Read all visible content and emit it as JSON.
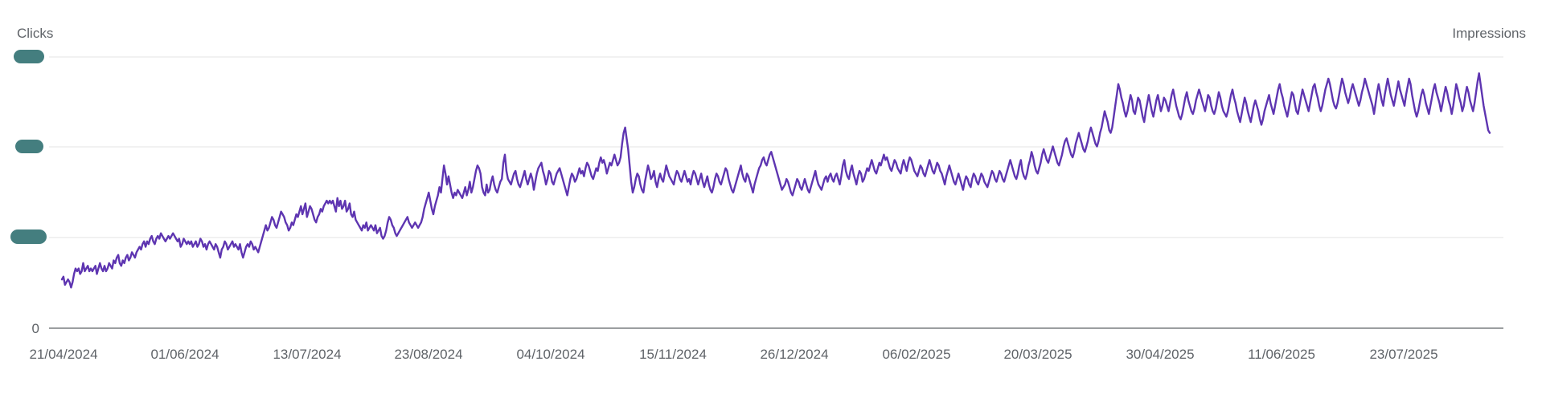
{
  "chart_data": {
    "type": "line",
    "ylabel_left": "Clicks",
    "ylabel_right": "Impressions",
    "y_ticks": [
      {
        "value": 0,
        "label": "0"
      }
    ],
    "y_ticks_redacted_count": 3,
    "x_ticks": [
      "21/04/2024",
      "01/06/2024",
      "13/07/2024",
      "23/08/2024",
      "04/10/2024",
      "15/11/2024",
      "26/12/2024",
      "06/02/2025",
      "20/03/2025",
      "30/04/2025",
      "11/06/2025",
      "23/07/2025"
    ],
    "x_range": [
      "2024-04-21",
      "2025-08-28"
    ],
    "y_range_fraction_of_top_gridline": [
      0,
      1
    ],
    "grid": true,
    "series": [
      {
        "axis": "left",
        "color": "#5e35b1",
        "point_interval_days": 1,
        "values_relative_to_top_gridline": [
          0.18,
          0.19,
          0.16,
          0.17,
          0.18,
          0.17,
          0.15,
          0.17,
          0.2,
          0.22,
          0.21,
          0.22,
          0.2,
          0.21,
          0.24,
          0.21,
          0.22,
          0.23,
          0.21,
          0.22,
          0.21,
          0.22,
          0.23,
          0.2,
          0.22,
          0.24,
          0.22,
          0.21,
          0.23,
          0.21,
          0.22,
          0.24,
          0.23,
          0.22,
          0.25,
          0.24,
          0.26,
          0.27,
          0.24,
          0.23,
          0.25,
          0.24,
          0.26,
          0.27,
          0.25,
          0.26,
          0.28,
          0.27,
          0.26,
          0.28,
          0.29,
          0.3,
          0.29,
          0.31,
          0.32,
          0.3,
          0.32,
          0.31,
          0.33,
          0.34,
          0.32,
          0.31,
          0.33,
          0.34,
          0.33,
          0.35,
          0.34,
          0.33,
          0.32,
          0.33,
          0.34,
          0.33,
          0.34,
          0.35,
          0.34,
          0.33,
          0.32,
          0.33,
          0.3,
          0.31,
          0.33,
          0.32,
          0.31,
          0.32,
          0.31,
          0.32,
          0.3,
          0.31,
          0.32,
          0.3,
          0.31,
          0.33,
          0.32,
          0.3,
          0.31,
          0.29,
          0.31,
          0.32,
          0.31,
          0.3,
          0.29,
          0.31,
          0.3,
          0.28,
          0.26,
          0.29,
          0.3,
          0.32,
          0.31,
          0.29,
          0.3,
          0.31,
          0.32,
          0.3,
          0.31,
          0.3,
          0.29,
          0.31,
          0.28,
          0.26,
          0.28,
          0.3,
          0.31,
          0.3,
          0.32,
          0.31,
          0.29,
          0.3,
          0.29,
          0.28,
          0.3,
          0.32,
          0.34,
          0.36,
          0.38,
          0.36,
          0.37,
          0.39,
          0.41,
          0.4,
          0.38,
          0.37,
          0.39,
          0.41,
          0.43,
          0.42,
          0.41,
          0.39,
          0.38,
          0.36,
          0.37,
          0.39,
          0.38,
          0.4,
          0.42,
          0.41,
          0.43,
          0.45,
          0.42,
          0.44,
          0.46,
          0.41,
          0.43,
          0.45,
          0.44,
          0.42,
          0.4,
          0.39,
          0.41,
          0.42,
          0.44,
          0.43,
          0.45,
          0.46,
          0.47,
          0.46,
          0.47,
          0.46,
          0.47,
          0.45,
          0.43,
          0.48,
          0.45,
          0.47,
          0.44,
          0.45,
          0.47,
          0.43,
          0.44,
          0.46,
          0.42,
          0.41,
          0.43,
          0.4,
          0.39,
          0.38,
          0.37,
          0.36,
          0.38,
          0.37,
          0.39,
          0.36,
          0.37,
          0.38,
          0.37,
          0.36,
          0.38,
          0.35,
          0.36,
          0.37,
          0.34,
          0.33,
          0.34,
          0.36,
          0.39,
          0.41,
          0.4,
          0.38,
          0.37,
          0.35,
          0.34,
          0.35,
          0.36,
          0.37,
          0.38,
          0.39,
          0.4,
          0.41,
          0.39,
          0.38,
          0.37,
          0.38,
          0.39,
          0.38,
          0.37,
          0.38,
          0.39,
          0.41,
          0.44,
          0.46,
          0.48,
          0.5,
          0.47,
          0.44,
          0.42,
          0.45,
          0.47,
          0.49,
          0.52,
          0.5,
          0.55,
          0.6,
          0.57,
          0.53,
          0.56,
          0.53,
          0.5,
          0.48,
          0.5,
          0.49,
          0.51,
          0.5,
          0.49,
          0.48,
          0.5,
          0.52,
          0.49,
          0.51,
          0.54,
          0.5,
          0.52,
          0.55,
          0.58,
          0.6,
          0.59,
          0.57,
          0.52,
          0.5,
          0.49,
          0.53,
          0.5,
          0.51,
          0.54,
          0.56,
          0.53,
          0.51,
          0.5,
          0.52,
          0.54,
          0.55,
          0.61,
          0.64,
          0.58,
          0.55,
          0.54,
          0.53,
          0.55,
          0.57,
          0.58,
          0.55,
          0.53,
          0.52,
          0.54,
          0.56,
          0.58,
          0.55,
          0.53,
          0.55,
          0.57,
          0.55,
          0.51,
          0.54,
          0.57,
          0.59,
          0.6,
          0.61,
          0.58,
          0.56,
          0.53,
          0.55,
          0.58,
          0.57,
          0.54,
          0.53,
          0.55,
          0.57,
          0.58,
          0.59,
          0.57,
          0.55,
          0.53,
          0.51,
          0.49,
          0.52,
          0.55,
          0.57,
          0.56,
          0.54,
          0.55,
          0.57,
          0.59,
          0.57,
          0.58,
          0.56,
          0.59,
          0.61,
          0.6,
          0.58,
          0.56,
          0.55,
          0.57,
          0.59,
          0.58,
          0.61,
          0.63,
          0.61,
          0.62,
          0.6,
          0.57,
          0.59,
          0.61,
          0.6,
          0.62,
          0.64,
          0.62,
          0.6,
          0.61,
          0.63,
          0.68,
          0.72,
          0.74,
          0.7,
          0.66,
          0.6,
          0.54,
          0.5,
          0.52,
          0.55,
          0.57,
          0.56,
          0.53,
          0.51,
          0.5,
          0.54,
          0.57,
          0.6,
          0.58,
          0.55,
          0.56,
          0.58,
          0.54,
          0.52,
          0.55,
          0.57,
          0.55,
          0.54,
          0.57,
          0.6,
          0.58,
          0.56,
          0.55,
          0.54,
          0.53,
          0.56,
          0.58,
          0.57,
          0.55,
          0.54,
          0.56,
          0.58,
          0.56,
          0.54,
          0.55,
          0.53,
          0.56,
          0.58,
          0.57,
          0.55,
          0.53,
          0.55,
          0.57,
          0.54,
          0.52,
          0.54,
          0.56,
          0.53,
          0.51,
          0.5,
          0.52,
          0.55,
          0.57,
          0.56,
          0.54,
          0.53,
          0.55,
          0.57,
          0.59,
          0.58,
          0.55,
          0.53,
          0.51,
          0.5,
          0.52,
          0.54,
          0.56,
          0.58,
          0.6,
          0.57,
          0.55,
          0.54,
          0.57,
          0.56,
          0.54,
          0.52,
          0.5,
          0.53,
          0.55,
          0.57,
          0.59,
          0.6,
          0.62,
          0.63,
          0.61,
          0.6,
          0.62,
          0.64,
          0.65,
          0.63,
          0.61,
          0.59,
          0.57,
          0.55,
          0.53,
          0.51,
          0.52,
          0.53,
          0.55,
          0.54,
          0.52,
          0.5,
          0.49,
          0.51,
          0.53,
          0.55,
          0.54,
          0.52,
          0.51,
          0.53,
          0.55,
          0.53,
          0.51,
          0.5,
          0.52,
          0.54,
          0.56,
          0.58,
          0.55,
          0.53,
          0.52,
          0.51,
          0.53,
          0.55,
          0.56,
          0.54,
          0.56,
          0.57,
          0.55,
          0.54,
          0.56,
          0.57,
          0.55,
          0.53,
          0.56,
          0.6,
          0.62,
          0.58,
          0.56,
          0.55,
          0.58,
          0.6,
          0.57,
          0.55,
          0.53,
          0.56,
          0.58,
          0.57,
          0.54,
          0.55,
          0.57,
          0.59,
          0.58,
          0.6,
          0.62,
          0.6,
          0.58,
          0.57,
          0.59,
          0.61,
          0.6,
          0.62,
          0.64,
          0.62,
          0.63,
          0.61,
          0.59,
          0.58,
          0.6,
          0.62,
          0.61,
          0.59,
          0.58,
          0.57,
          0.6,
          0.62,
          0.6,
          0.58,
          0.61,
          0.63,
          0.62,
          0.6,
          0.58,
          0.57,
          0.56,
          0.58,
          0.6,
          0.59,
          0.57,
          0.56,
          0.58,
          0.6,
          0.62,
          0.6,
          0.58,
          0.57,
          0.59,
          0.61,
          0.6,
          0.58,
          0.57,
          0.55,
          0.53,
          0.56,
          0.58,
          0.6,
          0.58,
          0.56,
          0.54,
          0.53,
          0.55,
          0.57,
          0.55,
          0.53,
          0.51,
          0.54,
          0.56,
          0.55,
          0.53,
          0.52,
          0.55,
          0.57,
          0.56,
          0.54,
          0.53,
          0.55,
          0.57,
          0.56,
          0.54,
          0.53,
          0.52,
          0.54,
          0.56,
          0.58,
          0.57,
          0.55,
          0.54,
          0.56,
          0.58,
          0.57,
          0.55,
          0.54,
          0.56,
          0.58,
          0.6,
          0.62,
          0.6,
          0.58,
          0.56,
          0.55,
          0.57,
          0.6,
          0.62,
          0.58,
          0.56,
          0.55,
          0.57,
          0.6,
          0.62,
          0.65,
          0.63,
          0.6,
          0.58,
          0.57,
          0.59,
          0.61,
          0.64,
          0.66,
          0.64,
          0.62,
          0.61,
          0.63,
          0.65,
          0.67,
          0.65,
          0.63,
          0.61,
          0.6,
          0.62,
          0.64,
          0.67,
          0.69,
          0.7,
          0.68,
          0.66,
          0.64,
          0.63,
          0.65,
          0.68,
          0.7,
          0.72,
          0.7,
          0.68,
          0.66,
          0.65,
          0.67,
          0.69,
          0.72,
          0.74,
          0.72,
          0.7,
          0.68,
          0.67,
          0.69,
          0.72,
          0.74,
          0.77,
          0.8,
          0.78,
          0.76,
          0.73,
          0.72,
          0.74,
          0.78,
          0.82,
          0.86,
          0.9,
          0.88,
          0.85,
          0.83,
          0.8,
          0.78,
          0.8,
          0.83,
          0.86,
          0.84,
          0.8,
          0.79,
          0.82,
          0.85,
          0.84,
          0.81,
          0.78,
          0.76,
          0.8,
          0.83,
          0.86,
          0.83,
          0.8,
          0.78,
          0.81,
          0.84,
          0.86,
          0.83,
          0.8,
          0.82,
          0.85,
          0.84,
          0.82,
          0.8,
          0.83,
          0.86,
          0.88,
          0.85,
          0.82,
          0.8,
          0.78,
          0.77,
          0.79,
          0.82,
          0.85,
          0.87,
          0.84,
          0.82,
          0.8,
          0.79,
          0.81,
          0.84,
          0.86,
          0.88,
          0.86,
          0.84,
          0.82,
          0.8,
          0.83,
          0.86,
          0.85,
          0.82,
          0.8,
          0.79,
          0.81,
          0.84,
          0.87,
          0.85,
          0.82,
          0.8,
          0.79,
          0.78,
          0.8,
          0.83,
          0.86,
          0.88,
          0.85,
          0.83,
          0.8,
          0.78,
          0.76,
          0.79,
          0.82,
          0.85,
          0.83,
          0.8,
          0.78,
          0.76,
          0.79,
          0.82,
          0.84,
          0.82,
          0.8,
          0.77,
          0.75,
          0.77,
          0.8,
          0.82,
          0.84,
          0.86,
          0.83,
          0.81,
          0.79,
          0.82,
          0.85,
          0.88,
          0.9,
          0.87,
          0.85,
          0.82,
          0.8,
          0.78,
          0.81,
          0.84,
          0.87,
          0.86,
          0.83,
          0.8,
          0.79,
          0.82,
          0.85,
          0.88,
          0.86,
          0.84,
          0.82,
          0.8,
          0.83,
          0.86,
          0.89,
          0.9,
          0.87,
          0.85,
          0.82,
          0.8,
          0.82,
          0.85,
          0.88,
          0.9,
          0.92,
          0.9,
          0.87,
          0.84,
          0.82,
          0.81,
          0.83,
          0.86,
          0.89,
          0.92,
          0.9,
          0.87,
          0.85,
          0.83,
          0.85,
          0.88,
          0.9,
          0.88,
          0.86,
          0.84,
          0.82,
          0.84,
          0.87,
          0.89,
          0.92,
          0.9,
          0.88,
          0.86,
          0.84,
          0.82,
          0.79,
          0.83,
          0.87,
          0.9,
          0.87,
          0.84,
          0.82,
          0.86,
          0.89,
          0.92,
          0.89,
          0.86,
          0.84,
          0.82,
          0.85,
          0.88,
          0.91,
          0.88,
          0.86,
          0.84,
          0.82,
          0.86,
          0.89,
          0.92,
          0.9,
          0.86,
          0.83,
          0.8,
          0.78,
          0.8,
          0.83,
          0.86,
          0.88,
          0.86,
          0.83,
          0.81,
          0.79,
          0.82,
          0.85,
          0.88,
          0.9,
          0.87,
          0.85,
          0.83,
          0.8,
          0.83,
          0.86,
          0.89,
          0.87,
          0.84,
          0.82,
          0.79,
          0.82,
          0.86,
          0.9,
          0.88,
          0.85,
          0.83,
          0.8,
          0.82,
          0.86,
          0.89,
          0.87,
          0.84,
          0.82,
          0.8,
          0.83,
          0.87,
          0.91,
          0.94,
          0.9,
          0.86,
          0.82,
          0.79,
          0.76,
          0.73,
          0.72
        ]
      }
    ]
  },
  "colors": {
    "line": "#5e35b1",
    "redaction": "#447e7f",
    "grid": "#e3e3e3",
    "baseline": "#5f6368",
    "text": "#5f6368"
  }
}
